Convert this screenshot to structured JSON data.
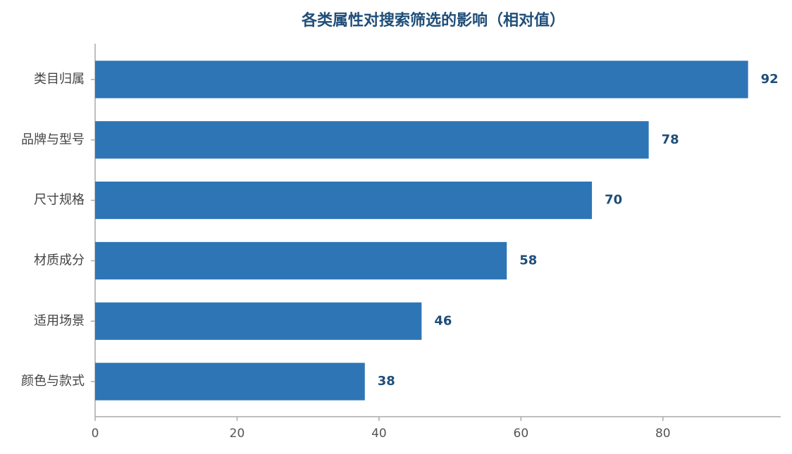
{
  "chart_data": {
    "type": "bar",
    "orientation": "horizontal",
    "title": "各类属性对搜索筛选的影响（相对值）",
    "categories": [
      "类目归属",
      "品牌与型号",
      "尺寸规格",
      "材质成分",
      "适用场景",
      "颜色与款式"
    ],
    "values": [
      92,
      78,
      70,
      58,
      46,
      38
    ],
    "color": "#2e75b6",
    "xlim": [
      0,
      96.6
    ],
    "xticks": [
      0,
      20,
      40,
      60,
      80
    ]
  }
}
